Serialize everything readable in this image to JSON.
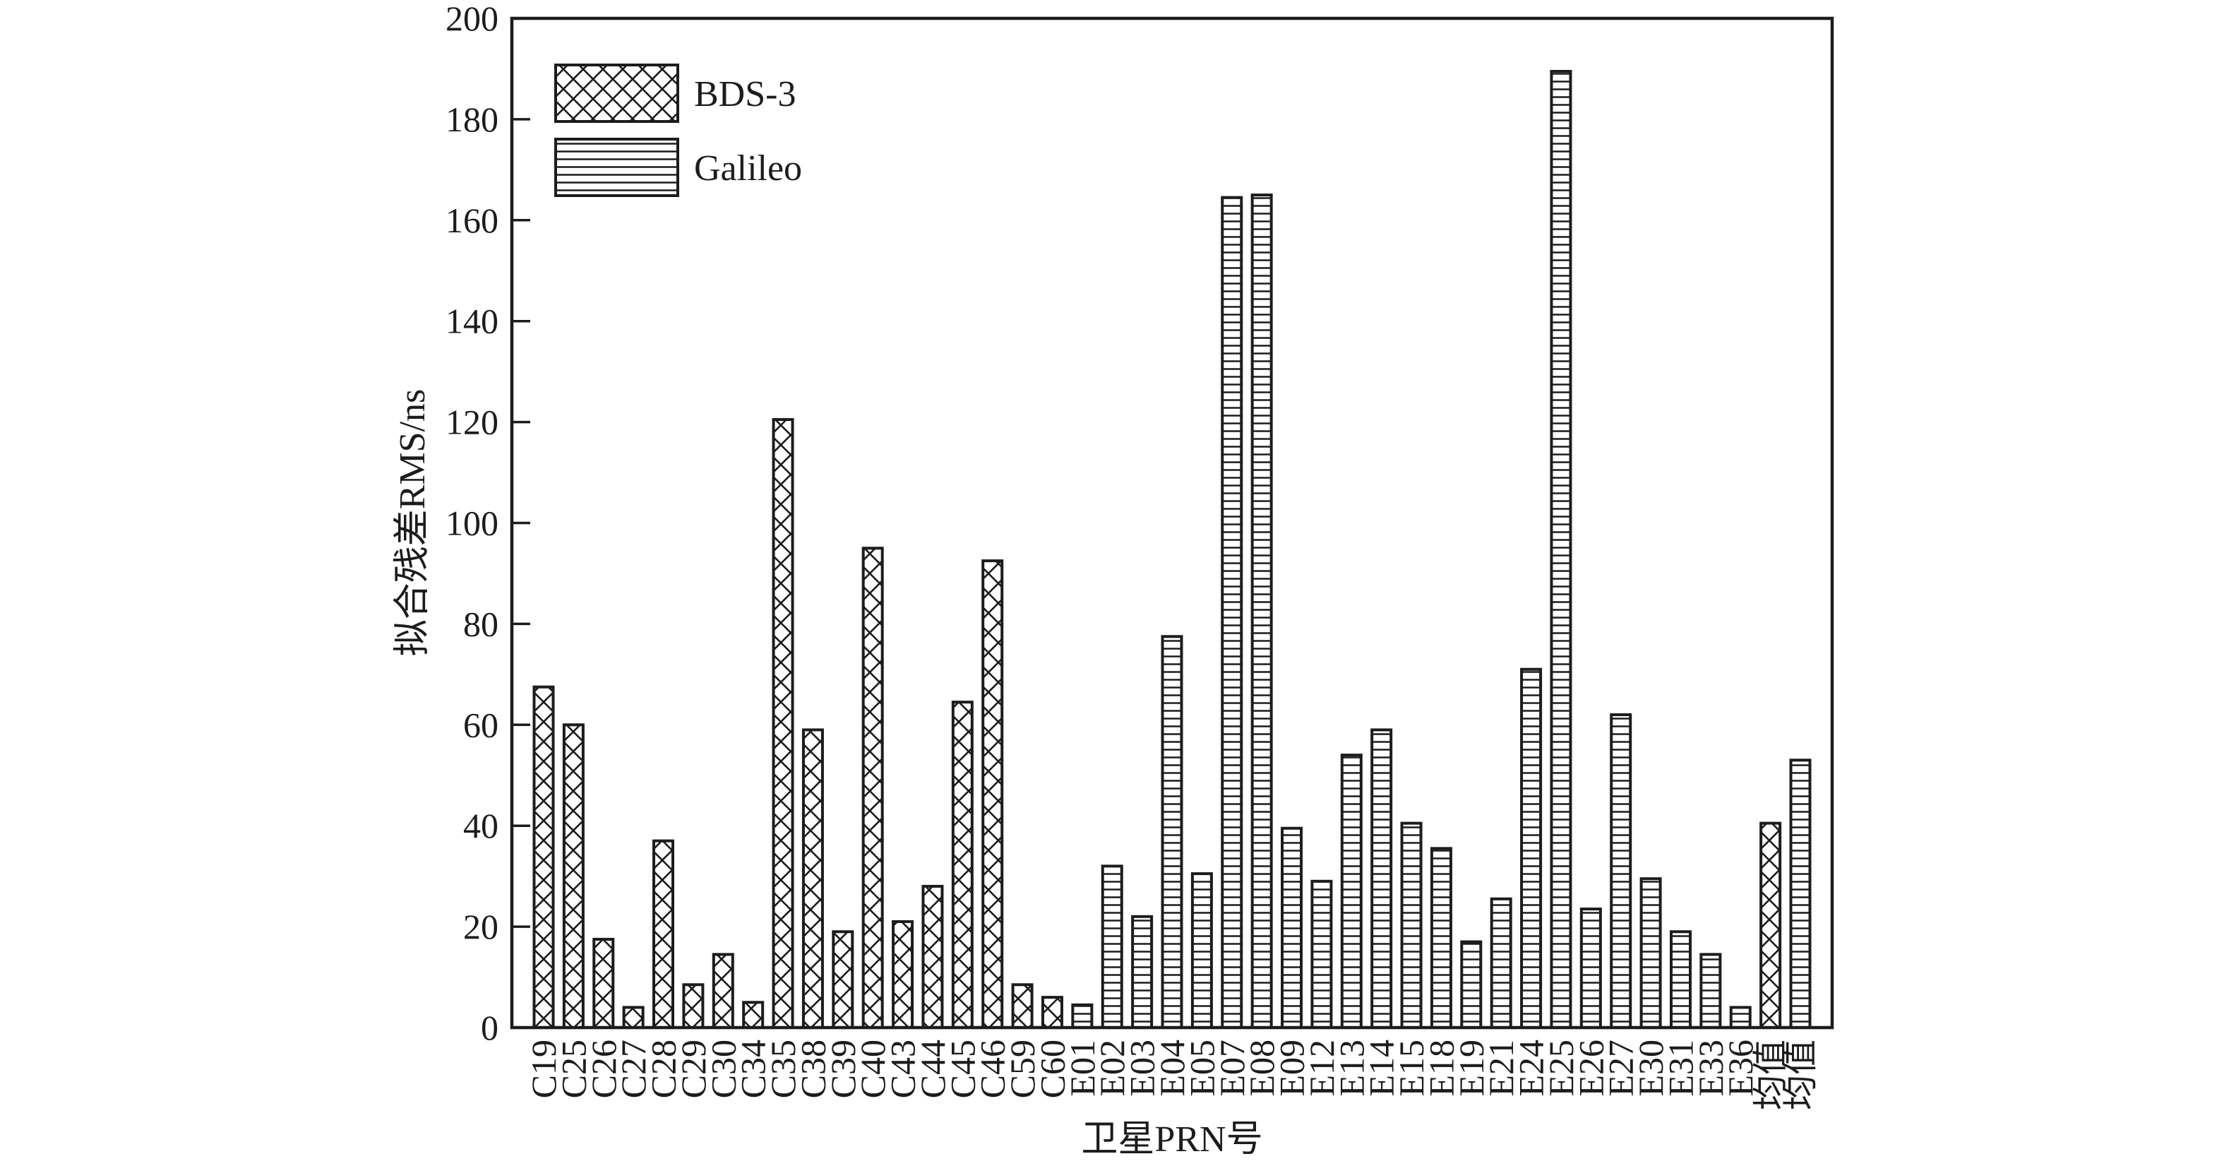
{
  "figure": {
    "background": "#ffffff",
    "ink_color": "#1c1c1c"
  },
  "chart_data": {
    "type": "bar",
    "title": "",
    "xlabel": "卫星PRN号",
    "ylabel": "拟合残差RMS/ns",
    "ylim": [
      0,
      200
    ],
    "ytick_step": 20,
    "grid": false,
    "legend_position": "upper-left-inside",
    "series": [
      {
        "name": "BDS-3",
        "hatch": "diagonal-crosshatch"
      },
      {
        "name": "Galileo",
        "hatch": "horizontal-lines"
      }
    ],
    "bars": [
      {
        "label": "C19",
        "series": "BDS-3",
        "value": 67.5
      },
      {
        "label": "C25",
        "series": "BDS-3",
        "value": 60
      },
      {
        "label": "C26",
        "series": "BDS-3",
        "value": 17.5
      },
      {
        "label": "C27",
        "series": "BDS-3",
        "value": 4
      },
      {
        "label": "C28",
        "series": "BDS-3",
        "value": 37
      },
      {
        "label": "C29",
        "series": "BDS-3",
        "value": 8.5
      },
      {
        "label": "C30",
        "series": "BDS-3",
        "value": 14.5
      },
      {
        "label": "C34",
        "series": "BDS-3",
        "value": 5
      },
      {
        "label": "C35",
        "series": "BDS-3",
        "value": 120.5
      },
      {
        "label": "C38",
        "series": "BDS-3",
        "value": 59
      },
      {
        "label": "C39",
        "series": "BDS-3",
        "value": 19
      },
      {
        "label": "C40",
        "series": "BDS-3",
        "value": 95
      },
      {
        "label": "C43",
        "series": "BDS-3",
        "value": 21
      },
      {
        "label": "C44",
        "series": "BDS-3",
        "value": 28
      },
      {
        "label": "C45",
        "series": "BDS-3",
        "value": 64.5
      },
      {
        "label": "C46",
        "series": "BDS-3",
        "value": 92.5
      },
      {
        "label": "C59",
        "series": "BDS-3",
        "value": 8.5
      },
      {
        "label": "C60",
        "series": "BDS-3",
        "value": 6
      },
      {
        "label": "E01",
        "series": "Galileo",
        "value": 4.5
      },
      {
        "label": "E02",
        "series": "Galileo",
        "value": 32
      },
      {
        "label": "E03",
        "series": "Galileo",
        "value": 22
      },
      {
        "label": "E04",
        "series": "Galileo",
        "value": 77.5
      },
      {
        "label": "E05",
        "series": "Galileo",
        "value": 30.5
      },
      {
        "label": "E07",
        "series": "Galileo",
        "value": 164.5
      },
      {
        "label": "E08",
        "series": "Galileo",
        "value": 165
      },
      {
        "label": "E09",
        "series": "Galileo",
        "value": 39.5
      },
      {
        "label": "E12",
        "series": "Galileo",
        "value": 29
      },
      {
        "label": "E13",
        "series": "Galileo",
        "value": 54
      },
      {
        "label": "E14",
        "series": "Galileo",
        "value": 59
      },
      {
        "label": "E15",
        "series": "Galileo",
        "value": 40.5
      },
      {
        "label": "E18",
        "series": "Galileo",
        "value": 35.5
      },
      {
        "label": "E19",
        "series": "Galileo",
        "value": 17
      },
      {
        "label": "E21",
        "series": "Galileo",
        "value": 25.5
      },
      {
        "label": "E24",
        "series": "Galileo",
        "value": 71
      },
      {
        "label": "E25",
        "series": "Galileo",
        "value": 189.5
      },
      {
        "label": "E26",
        "series": "Galileo",
        "value": 23.5
      },
      {
        "label": "E27",
        "series": "Galileo",
        "value": 62
      },
      {
        "label": "E30",
        "series": "Galileo",
        "value": 29.5
      },
      {
        "label": "E31",
        "series": "Galileo",
        "value": 19
      },
      {
        "label": "E33",
        "series": "Galileo",
        "value": 14.5
      },
      {
        "label": "E36",
        "series": "Galileo",
        "value": 4
      },
      {
        "label": "均值",
        "series": "BDS-3",
        "value": 40.5
      },
      {
        "label": "均值",
        "series": "Galileo",
        "value": 53
      }
    ]
  }
}
